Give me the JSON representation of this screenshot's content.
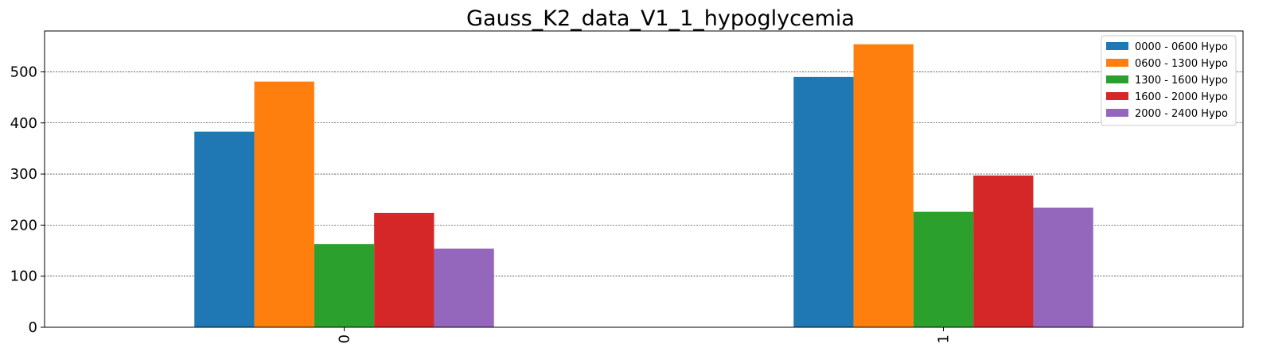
{
  "chart_data": {
    "type": "bar",
    "title": "Gauss_K2_data_V1_1_hypoglycemia",
    "xlabel": "",
    "ylabel": "",
    "categories": [
      "0",
      "1"
    ],
    "ylim": [
      0,
      580
    ],
    "yticks": [
      0,
      100,
      200,
      300,
      400,
      500
    ],
    "grid": "y",
    "legend_position": "top-right",
    "series": [
      {
        "name": "0000 - 0600 Hypo",
        "color": "#1f77b4",
        "values": [
          383,
          490
        ]
      },
      {
        "name": "0600 - 1300 Hypo",
        "color": "#ff7f0e",
        "values": [
          481,
          554
        ]
      },
      {
        "name": "1300 - 1600 Hypo",
        "color": "#2ca02c",
        "values": [
          163,
          226
        ]
      },
      {
        "name": "1600 - 2000 Hypo",
        "color": "#d62728",
        "values": [
          224,
          297
        ]
      },
      {
        "name": "2000 - 2400 Hypo",
        "color": "#9467bd",
        "values": [
          154,
          234
        ]
      }
    ]
  }
}
